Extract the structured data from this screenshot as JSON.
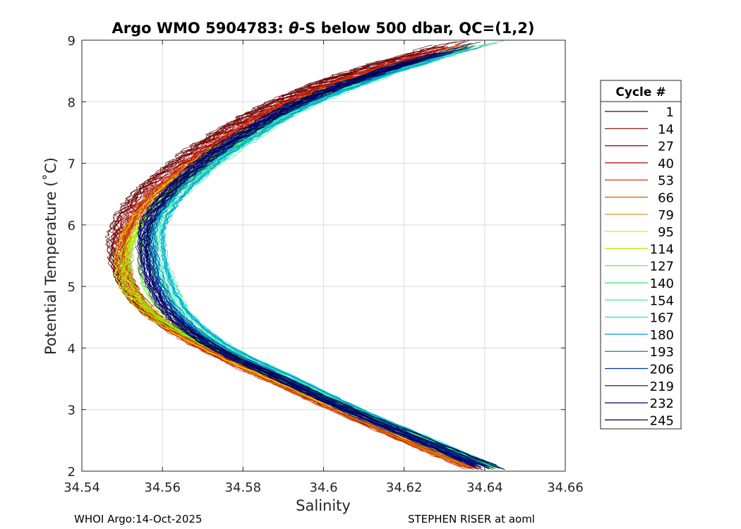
{
  "chart_data": {
    "type": "line",
    "title_parts": {
      "prefix": "Argo WMO 5904783: ",
      "theta": "θ",
      "suffix": "-S below 500 dbar,  QC=(1,2)"
    },
    "xlabel": "Salinity",
    "ylabel": "Potential Temperature (˚C)",
    "xlim": [
      34.54,
      34.66
    ],
    "ylim": [
      2,
      9
    ],
    "x_ticks": [
      34.54,
      34.56,
      34.58,
      34.6,
      34.62,
      34.64,
      34.66
    ],
    "x_tick_labels": [
      "34.54",
      "34.56",
      "34.58",
      "34.6",
      "34.62",
      "34.64",
      "34.66"
    ],
    "y_ticks": [
      2,
      3,
      4,
      5,
      6,
      7,
      8,
      9
    ],
    "y_tick_labels": [
      "2",
      "3",
      "4",
      "5",
      "6",
      "7",
      "8",
      "9"
    ],
    "grid": true,
    "legend_position": "right",
    "legend_title": "Cycle #",
    "series": [
      {
        "name": "1",
        "color": "#550000",
        "profile": [
          [
            9,
            34.634
          ],
          [
            8.5,
            34.608
          ],
          [
            8,
            34.588
          ],
          [
            7.5,
            34.574
          ],
          [
            7,
            34.563
          ],
          [
            6.5,
            34.554
          ],
          [
            6,
            34.549
          ],
          [
            5.5,
            34.548
          ],
          [
            5,
            34.551
          ],
          [
            4.5,
            34.558
          ],
          [
            4,
            34.571
          ],
          [
            3.5,
            34.588
          ],
          [
            3,
            34.604
          ],
          [
            2.5,
            34.621
          ],
          [
            2,
            34.64
          ]
        ]
      },
      {
        "name": "14",
        "color": "#7a0000",
        "profile": [
          [
            9,
            34.635
          ],
          [
            8.5,
            34.609
          ],
          [
            8,
            34.589
          ],
          [
            7.5,
            34.575
          ],
          [
            7,
            34.564
          ],
          [
            6.5,
            34.555
          ],
          [
            6,
            34.55
          ],
          [
            5.5,
            34.549
          ],
          [
            5,
            34.551
          ],
          [
            4.5,
            34.558
          ],
          [
            4,
            34.571
          ],
          [
            3.5,
            34.587
          ],
          [
            3,
            34.604
          ],
          [
            2.5,
            34.621
          ],
          [
            2,
            34.64
          ]
        ]
      },
      {
        "name": "27",
        "color": "#980000",
        "profile": [
          [
            9,
            34.636
          ],
          [
            8.5,
            34.61
          ],
          [
            8,
            34.59
          ],
          [
            7.5,
            34.576
          ],
          [
            7,
            34.565
          ],
          [
            6.5,
            34.556
          ],
          [
            6,
            34.551
          ],
          [
            5.5,
            34.549
          ],
          [
            5,
            34.552
          ],
          [
            4.5,
            34.558
          ],
          [
            4,
            34.57
          ],
          [
            3.5,
            34.587
          ],
          [
            3,
            34.603
          ],
          [
            2.5,
            34.62
          ],
          [
            2,
            34.639
          ]
        ]
      },
      {
        "name": "40",
        "color": "#b40000",
        "profile": [
          [
            9,
            34.637
          ],
          [
            8.5,
            34.611
          ],
          [
            8,
            34.591
          ],
          [
            7.5,
            34.577
          ],
          [
            7,
            34.566
          ],
          [
            6.5,
            34.557
          ],
          [
            6,
            34.551
          ],
          [
            5.5,
            34.55
          ],
          [
            5,
            34.552
          ],
          [
            4.5,
            34.558
          ],
          [
            4,
            34.57
          ],
          [
            3.5,
            34.586
          ],
          [
            3,
            34.603
          ],
          [
            2.5,
            34.62
          ],
          [
            2,
            34.639
          ]
        ]
      },
      {
        "name": "53",
        "color": "#cc2200",
        "profile": [
          [
            9,
            34.638
          ],
          [
            8.5,
            34.612
          ],
          [
            8,
            34.592
          ],
          [
            7.5,
            34.578
          ],
          [
            7,
            34.567
          ],
          [
            6.5,
            34.558
          ],
          [
            6,
            34.552
          ],
          [
            5.5,
            34.55
          ],
          [
            5,
            34.552
          ],
          [
            4.5,
            34.558
          ],
          [
            4,
            34.57
          ],
          [
            3.5,
            34.586
          ],
          [
            3,
            34.603
          ],
          [
            2.5,
            34.62
          ],
          [
            2,
            34.638
          ]
        ]
      },
      {
        "name": "66",
        "color": "#dd5500",
        "profile": [
          [
            9,
            34.639
          ],
          [
            8.5,
            34.613
          ],
          [
            8,
            34.593
          ],
          [
            7.5,
            34.579
          ],
          [
            7,
            34.567
          ],
          [
            6.5,
            34.558
          ],
          [
            6,
            34.552
          ],
          [
            5.5,
            34.55
          ],
          [
            5,
            34.552
          ],
          [
            4.5,
            34.558
          ],
          [
            4,
            34.57
          ],
          [
            3.5,
            34.586
          ],
          [
            3,
            34.603
          ],
          [
            2.5,
            34.62
          ],
          [
            2,
            34.638
          ]
        ]
      },
      {
        "name": "79",
        "color": "#e08800",
        "profile": [
          [
            9,
            34.64
          ],
          [
            8.5,
            34.614
          ],
          [
            8,
            34.594
          ],
          [
            7.5,
            34.58
          ],
          [
            7,
            34.568
          ],
          [
            6.5,
            34.559
          ],
          [
            6,
            34.553
          ],
          [
            5.5,
            34.551
          ],
          [
            5,
            34.552
          ],
          [
            4.5,
            34.559
          ],
          [
            4,
            34.571
          ],
          [
            3.5,
            34.587
          ],
          [
            3,
            34.604
          ],
          [
            2.5,
            34.621
          ],
          [
            2,
            34.64
          ]
        ]
      },
      {
        "name": "95",
        "color": "#e8e800",
        "profile": [
          [
            9,
            34.641
          ],
          [
            8.5,
            34.615
          ],
          [
            8,
            34.595
          ],
          [
            7.5,
            34.581
          ],
          [
            7,
            34.569
          ],
          [
            6.5,
            34.56
          ],
          [
            6,
            34.553
          ],
          [
            5.5,
            34.55
          ],
          [
            5,
            34.551
          ],
          [
            4.5,
            34.558
          ],
          [
            4,
            34.571
          ],
          [
            3.5,
            34.588
          ],
          [
            3,
            34.605
          ],
          [
            2.5,
            34.623
          ],
          [
            2,
            34.642
          ]
        ]
      },
      {
        "name": "114",
        "color": "#aaee00",
        "profile": [
          [
            9,
            34.642
          ],
          [
            8.5,
            34.616
          ],
          [
            8,
            34.596
          ],
          [
            7.5,
            34.582
          ],
          [
            7,
            34.57
          ],
          [
            6.5,
            34.561
          ],
          [
            6,
            34.554
          ],
          [
            5.5,
            34.55
          ],
          [
            5,
            34.55
          ],
          [
            4.5,
            34.558
          ],
          [
            4,
            34.572
          ],
          [
            3.5,
            34.589
          ],
          [
            3,
            34.606
          ],
          [
            2.5,
            34.624
          ],
          [
            2,
            34.643
          ]
        ]
      },
      {
        "name": "127",
        "color": "#66ee22",
        "profile": [
          [
            9,
            34.643
          ],
          [
            8.5,
            34.617
          ],
          [
            8,
            34.597
          ],
          [
            7.5,
            34.583
          ],
          [
            7,
            34.571
          ],
          [
            6.5,
            34.562
          ],
          [
            6,
            34.556
          ],
          [
            5.5,
            34.553
          ],
          [
            5,
            34.554
          ],
          [
            4.5,
            34.56
          ],
          [
            4,
            34.573
          ],
          [
            3.5,
            34.59
          ],
          [
            3,
            34.607
          ],
          [
            2.5,
            34.625
          ],
          [
            2,
            34.644
          ]
        ]
      },
      {
        "name": "140",
        "color": "#22ee66",
        "profile": [
          [
            9,
            34.644
          ],
          [
            8.5,
            34.618
          ],
          [
            8,
            34.598
          ],
          [
            7.5,
            34.584
          ],
          [
            7,
            34.573
          ],
          [
            6.5,
            34.564
          ],
          [
            6,
            34.559
          ],
          [
            5.5,
            34.558
          ],
          [
            5,
            34.561
          ],
          [
            4.5,
            34.566
          ],
          [
            4,
            34.577
          ],
          [
            3.5,
            34.593
          ],
          [
            3,
            34.609
          ],
          [
            2.5,
            34.627
          ],
          [
            2,
            34.645
          ]
        ]
      },
      {
        "name": "154",
        "color": "#22eeaa",
        "profile": [
          [
            9,
            34.645
          ],
          [
            8.5,
            34.619
          ],
          [
            8,
            34.599
          ],
          [
            7.5,
            34.585
          ],
          [
            7,
            34.574
          ],
          [
            6.5,
            34.565
          ],
          [
            6,
            34.56
          ],
          [
            5.5,
            34.56
          ],
          [
            5,
            34.563
          ],
          [
            4.5,
            34.567
          ],
          [
            4,
            34.577
          ],
          [
            3.5,
            34.593
          ],
          [
            3,
            34.609
          ],
          [
            2.5,
            34.627
          ],
          [
            2,
            34.645
          ]
        ]
      },
      {
        "name": "167",
        "color": "#22dddd",
        "profile": [
          [
            9,
            34.644
          ],
          [
            8.5,
            34.618
          ],
          [
            8,
            34.598
          ],
          [
            7.5,
            34.584
          ],
          [
            7,
            34.573
          ],
          [
            6.5,
            34.565
          ],
          [
            6,
            34.56
          ],
          [
            5.5,
            34.56
          ],
          [
            5,
            34.562
          ],
          [
            4.5,
            34.567
          ],
          [
            4,
            34.577
          ],
          [
            3.5,
            34.593
          ],
          [
            3,
            34.609
          ],
          [
            2.5,
            34.627
          ],
          [
            2,
            34.645
          ]
        ]
      },
      {
        "name": "180",
        "color": "#0099cc",
        "profile": [
          [
            9,
            34.643
          ],
          [
            8.5,
            34.617
          ],
          [
            8,
            34.597
          ],
          [
            7.5,
            34.583
          ],
          [
            7,
            34.572
          ],
          [
            6.5,
            34.564
          ],
          [
            6,
            34.559
          ],
          [
            5.5,
            34.559
          ],
          [
            5,
            34.561
          ],
          [
            4.5,
            34.566
          ],
          [
            4,
            34.576
          ],
          [
            3.5,
            34.592
          ],
          [
            3,
            34.608
          ],
          [
            2.5,
            34.626
          ],
          [
            2,
            34.644
          ]
        ]
      },
      {
        "name": "193",
        "color": "#0066bb",
        "profile": [
          [
            9,
            34.642
          ],
          [
            8.5,
            34.616
          ],
          [
            8,
            34.596
          ],
          [
            7.5,
            34.582
          ],
          [
            7,
            34.571
          ],
          [
            6.5,
            34.563
          ],
          [
            6,
            34.558
          ],
          [
            5.5,
            34.558
          ],
          [
            5,
            34.56
          ],
          [
            4.5,
            34.565
          ],
          [
            4,
            34.575
          ],
          [
            3.5,
            34.591
          ],
          [
            3,
            34.607
          ],
          [
            2.5,
            34.625
          ],
          [
            2,
            34.643
          ]
        ]
      },
      {
        "name": "206",
        "color": "#0033aa",
        "profile": [
          [
            9,
            34.641
          ],
          [
            8.5,
            34.615
          ],
          [
            8,
            34.595
          ],
          [
            7.5,
            34.581
          ],
          [
            7,
            34.57
          ],
          [
            6.5,
            34.562
          ],
          [
            6,
            34.557
          ],
          [
            5.5,
            34.557
          ],
          [
            5,
            34.559
          ],
          [
            4.5,
            34.564
          ],
          [
            4,
            34.574
          ],
          [
            3.5,
            34.59
          ],
          [
            3,
            34.606
          ],
          [
            2.5,
            34.624
          ],
          [
            2,
            34.642
          ]
        ]
      },
      {
        "name": "219",
        "color": "#000088",
        "profile": [
          [
            9,
            34.64
          ],
          [
            8.5,
            34.614
          ],
          [
            8,
            34.594
          ],
          [
            7.5,
            34.58
          ],
          [
            7,
            34.569
          ],
          [
            6.5,
            34.561
          ],
          [
            6,
            34.556
          ],
          [
            5.5,
            34.556
          ],
          [
            5,
            34.558
          ],
          [
            4.5,
            34.563
          ],
          [
            4,
            34.573
          ],
          [
            3.5,
            34.589
          ],
          [
            3,
            34.605
          ],
          [
            2.5,
            34.623
          ],
          [
            2,
            34.641
          ]
        ]
      },
      {
        "name": "232",
        "color": "#000066",
        "profile": [
          [
            9,
            34.64
          ],
          [
            8.5,
            34.614
          ],
          [
            8,
            34.594
          ],
          [
            7.5,
            34.58
          ],
          [
            7,
            34.569
          ],
          [
            6.5,
            34.561
          ],
          [
            6,
            34.556
          ],
          [
            5.5,
            34.556
          ],
          [
            5,
            34.558
          ],
          [
            4.5,
            34.563
          ],
          [
            4,
            34.573
          ],
          [
            3.5,
            34.589
          ],
          [
            3,
            34.606
          ],
          [
            2.5,
            34.624
          ],
          [
            2,
            34.642
          ]
        ]
      },
      {
        "name": "245",
        "color": "#000044",
        "profile": [
          [
            9,
            34.641
          ],
          [
            8.5,
            34.615
          ],
          [
            8,
            34.595
          ],
          [
            7.5,
            34.581
          ],
          [
            7,
            34.57
          ],
          [
            6.5,
            34.561
          ],
          [
            6,
            34.556
          ],
          [
            5.5,
            34.555
          ],
          [
            5,
            34.557
          ],
          [
            4.5,
            34.562
          ],
          [
            4,
            34.573
          ],
          [
            3.5,
            34.59
          ],
          [
            3,
            34.607
          ],
          [
            2.5,
            34.626
          ],
          [
            2,
            34.645
          ]
        ]
      }
    ]
  },
  "footer": {
    "left": "WHOI Argo:14-Oct-2025",
    "right": "STEPHEN RISER at aoml"
  }
}
